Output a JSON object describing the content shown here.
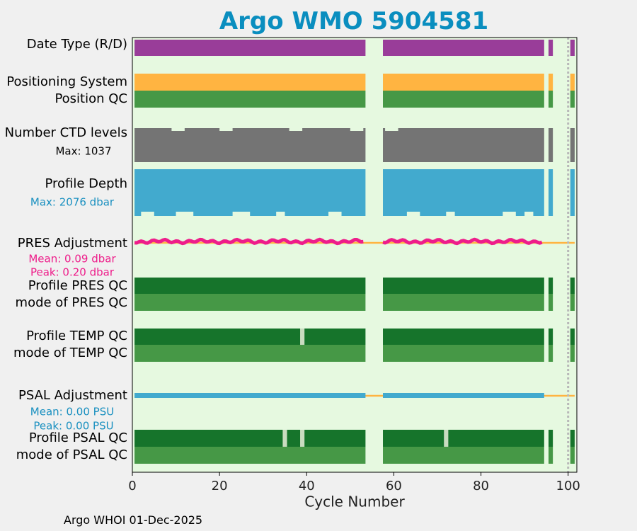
{
  "chart_data": {
    "type": "bar",
    "title": "Argo WMO 5904581",
    "xlabel": "Cycle Number",
    "xlim": [
      0,
      102
    ],
    "xticks": [
      0,
      20,
      40,
      60,
      80,
      100
    ],
    "xtick_labels": [
      "0",
      "20",
      "40",
      "60",
      "80",
      "100"
    ],
    "vline_cycle": 100,
    "rows": [
      {
        "label": "Date Type (R/D)",
        "color": "#993d99"
      },
      {
        "label": "Positioning System",
        "color": "#ffb441"
      },
      {
        "label": "Position QC",
        "color": "#469846"
      },
      {
        "label": "Number CTD levels",
        "color": "#747474",
        "note": "Max: 1037",
        "note_color": "#000000"
      },
      {
        "label": "Profile Depth",
        "color": "#42aace",
        "note": "Max: 2076 dbar",
        "note_color": "#1a90c0"
      },
      {
        "label": "PRES Adjustment",
        "color": "#ee1d8a",
        "line_color": "#ffb441",
        "notes": [
          "Mean: 0.09 dbar",
          "Peak: 0.20 dbar"
        ],
        "note_color": "#ee1d8a"
      },
      {
        "label": "Profile PRES QC",
        "color": "#16742b"
      },
      {
        "label": "mode of PRES QC",
        "color": "#469846"
      },
      {
        "label": "Profile TEMP QC",
        "color": "#16742b"
      },
      {
        "label": "mode of TEMP QC",
        "color": "#469846"
      },
      {
        "label": "PSAL Adjustment",
        "color": "#42aace",
        "line_color": "#ffb441",
        "notes": [
          "Mean: 0.00 PSU",
          "Peak: 0.00 PSU"
        ],
        "note_color": "#1a90c0"
      },
      {
        "label": "Profile PSAL QC",
        "color": "#16742b"
      },
      {
        "label": "mode of PSAL QC",
        "color": "#469846"
      }
    ],
    "coverage_segments": [
      [
        0.5,
        53.5
      ],
      [
        57.5,
        94.5
      ],
      [
        95.5,
        96.5
      ],
      [
        100.5,
        101.5
      ]
    ],
    "temp_qc_gaps": [
      39
    ],
    "psal_qc_gaps": [
      35,
      39,
      72
    ],
    "qc_gap_color": "#c9dcc0",
    "adjustment_segments": [
      [
        0.5,
        53.5
      ],
      [
        57.5,
        94.5
      ]
    ],
    "adjustment_line_range": [
      0.5,
      101.5
    ],
    "pres_adjustment_mean": 0.09,
    "pres_adjustment_peak": 0.2,
    "psal_adjustment_mean": 0.0,
    "psal_adjustment_peak": 0.0,
    "ctd_levels_max": 1037,
    "profile_depth_max": 2076
  },
  "footer": "Argo WHOI 01-Dec-2025"
}
